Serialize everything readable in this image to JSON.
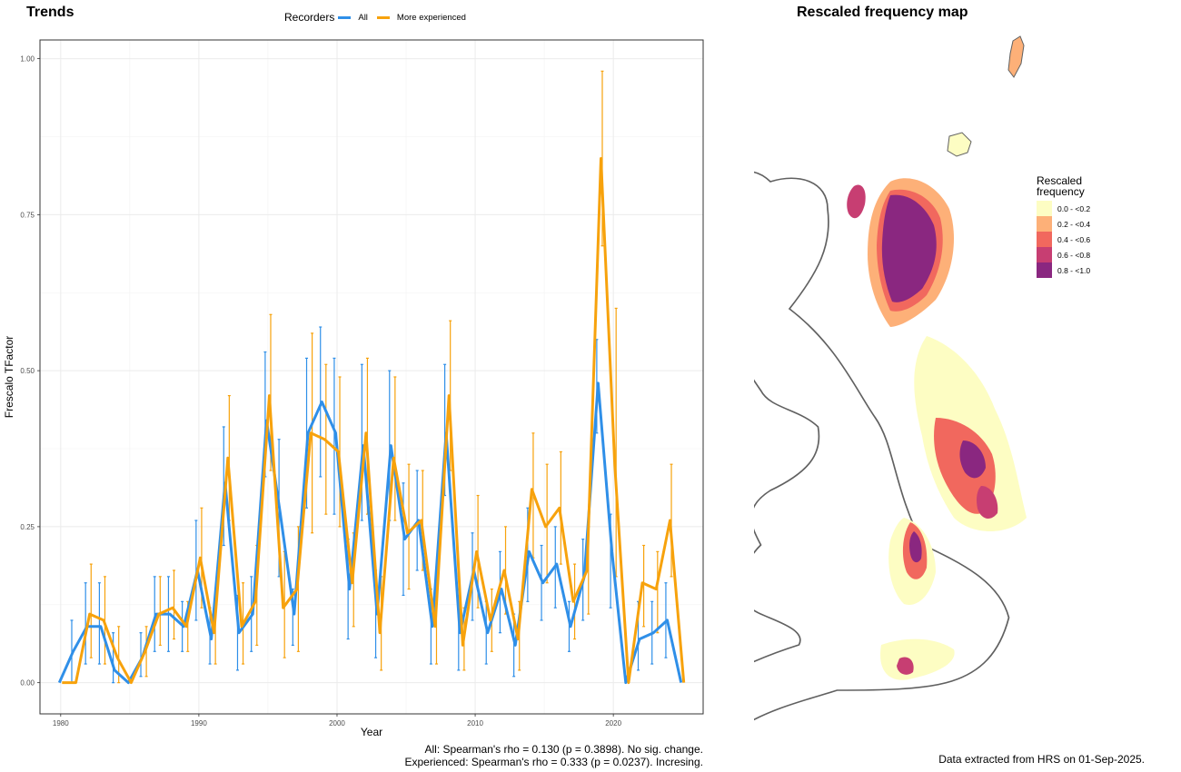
{
  "left_panel": {
    "title": "Trends",
    "legend": {
      "title": "Recorders",
      "entries": [
        {
          "label": "All",
          "color": "#2f8fe8"
        },
        {
          "label": "More experienced",
          "color": "#f7a20c"
        }
      ]
    },
    "caption": {
      "line1": "All: Spearman's rho = 0.130 (p = 0.3898). No sig. change.",
      "line2": "Experienced: Spearman's rho = 0.333 (p = 0.0237). Incresing."
    }
  },
  "right_panel": {
    "title": "Rescaled frequency map",
    "legend": {
      "title_line1": "Rescaled",
      "title_line2": "frequency",
      "items": [
        {
          "label": "0.0 - <0.2",
          "color": "#fdfdc3"
        },
        {
          "label": "0.2 - <0.4",
          "color": "#fdb078"
        },
        {
          "label": "0.4 - <0.6",
          "color": "#f1685e"
        },
        {
          "label": "0.6 - <0.8",
          "color": "#c73e72"
        },
        {
          "label": "0.8 - <1.0",
          "color": "#8a2780"
        }
      ]
    },
    "footer": "Data extracted from HRS on 01-Sep-2025."
  },
  "chart_data": {
    "type": "line",
    "title": "Trends",
    "xlabel": "Year",
    "ylabel": "Frescalo TFactor",
    "xlim": [
      1978.5,
      2026.5
    ],
    "ylim": [
      -0.05,
      1.03
    ],
    "x_ticks": [
      1980,
      1990,
      2000,
      2010,
      2020
    ],
    "y_ticks": [
      0.0,
      0.25,
      0.5,
      0.75,
      1.0
    ],
    "y_tick_labels": [
      "0.00",
      "0.25",
      "0.50",
      "0.75",
      "1.00"
    ],
    "grid": true,
    "legend_position": "top",
    "series": [
      {
        "name": "All",
        "color": "#2f8fe8",
        "x": [
          1980,
          1981,
          1982,
          1983,
          1984,
          1985,
          1986,
          1987,
          1988,
          1989,
          1990,
          1991,
          1992,
          1993,
          1994,
          1995,
          1996,
          1997,
          1998,
          1999,
          2000,
          2001,
          2002,
          2003,
          2004,
          2005,
          2006,
          2007,
          2008,
          2009,
          2010,
          2011,
          2012,
          2013,
          2014,
          2015,
          2016,
          2017,
          2018,
          2019,
          2020,
          2021,
          2022,
          2023,
          2024,
          2025
        ],
        "values": [
          0.0,
          0.05,
          0.09,
          0.09,
          0.02,
          0.0,
          0.04,
          0.11,
          0.11,
          0.09,
          0.18,
          0.07,
          0.32,
          0.08,
          0.11,
          0.42,
          0.27,
          0.11,
          0.4,
          0.45,
          0.4,
          0.15,
          0.38,
          0.11,
          0.38,
          0.23,
          0.26,
          0.09,
          0.4,
          0.08,
          0.18,
          0.08,
          0.15,
          0.06,
          0.21,
          0.16,
          0.19,
          0.09,
          0.17,
          0.48,
          0.21,
          0.0,
          0.07,
          0.08,
          0.1,
          0.0
        ],
        "lower": [
          0.0,
          0.0,
          0.03,
          0.03,
          0.0,
          0.0,
          0.01,
          0.05,
          0.05,
          0.05,
          0.1,
          0.03,
          0.22,
          0.02,
          0.05,
          0.33,
          0.17,
          0.06,
          0.28,
          0.33,
          0.27,
          0.07,
          0.26,
          0.04,
          0.26,
          0.14,
          0.18,
          0.03,
          0.3,
          0.02,
          0.1,
          0.03,
          0.08,
          0.01,
          0.13,
          0.1,
          0.12,
          0.05,
          0.1,
          0.4,
          0.12,
          0.0,
          0.02,
          0.03,
          0.04,
          0.0
        ],
        "upper": [
          0.0,
          0.1,
          0.16,
          0.16,
          0.08,
          0.0,
          0.08,
          0.17,
          0.17,
          0.13,
          0.26,
          0.12,
          0.41,
          0.14,
          0.17,
          0.53,
          0.39,
          0.15,
          0.52,
          0.57,
          0.52,
          0.23,
          0.51,
          0.18,
          0.5,
          0.32,
          0.34,
          0.15,
          0.51,
          0.14,
          0.24,
          0.13,
          0.21,
          0.11,
          0.28,
          0.22,
          0.25,
          0.13,
          0.23,
          0.55,
          0.27,
          0.0,
          0.13,
          0.13,
          0.16,
          0.0
        ]
      },
      {
        "name": "More experienced",
        "color": "#f7a20c",
        "x": [
          1980,
          1981,
          1982,
          1983,
          1984,
          1985,
          1986,
          1987,
          1988,
          1989,
          1990,
          1991,
          1992,
          1993,
          1994,
          1995,
          1996,
          1997,
          1998,
          1999,
          2000,
          2001,
          2002,
          2003,
          2004,
          2005,
          2006,
          2007,
          2008,
          2009,
          2010,
          2011,
          2012,
          2013,
          2014,
          2015,
          2016,
          2017,
          2018,
          2019,
          2020,
          2021,
          2022,
          2023,
          2024,
          2025
        ],
        "values": [
          0.0,
          0.0,
          0.11,
          0.1,
          0.04,
          0.0,
          0.05,
          0.11,
          0.12,
          0.09,
          0.2,
          0.08,
          0.36,
          0.09,
          0.13,
          0.46,
          0.12,
          0.15,
          0.4,
          0.39,
          0.37,
          0.16,
          0.4,
          0.08,
          0.36,
          0.24,
          0.26,
          0.09,
          0.46,
          0.06,
          0.21,
          0.1,
          0.18,
          0.07,
          0.31,
          0.25,
          0.28,
          0.13,
          0.18,
          0.84,
          0.35,
          0.0,
          0.16,
          0.15,
          0.26,
          0.0
        ],
        "lower": [
          0.0,
          0.0,
          0.04,
          0.03,
          0.0,
          0.0,
          0.01,
          0.06,
          0.07,
          0.05,
          0.12,
          0.03,
          0.26,
          0.03,
          0.06,
          0.34,
          0.04,
          0.05,
          0.24,
          0.27,
          0.25,
          0.09,
          0.27,
          0.02,
          0.26,
          0.15,
          0.18,
          0.03,
          0.34,
          0.02,
          0.12,
          0.05,
          0.11,
          0.02,
          0.2,
          0.16,
          0.19,
          0.07,
          0.11,
          0.7,
          0.17,
          0.0,
          0.09,
          0.08,
          0.17,
          0.0
        ],
        "upper": [
          0.0,
          0.0,
          0.19,
          0.17,
          0.09,
          0.0,
          0.09,
          0.17,
          0.18,
          0.13,
          0.28,
          0.12,
          0.46,
          0.16,
          0.22,
          0.59,
          0.21,
          0.25,
          0.56,
          0.51,
          0.49,
          0.24,
          0.52,
          0.17,
          0.49,
          0.35,
          0.34,
          0.15,
          0.58,
          0.12,
          0.3,
          0.15,
          0.25,
          0.13,
          0.4,
          0.35,
          0.37,
          0.19,
          0.25,
          0.98,
          0.6,
          0.0,
          0.22,
          0.21,
          0.35,
          0.0
        ]
      }
    ]
  }
}
